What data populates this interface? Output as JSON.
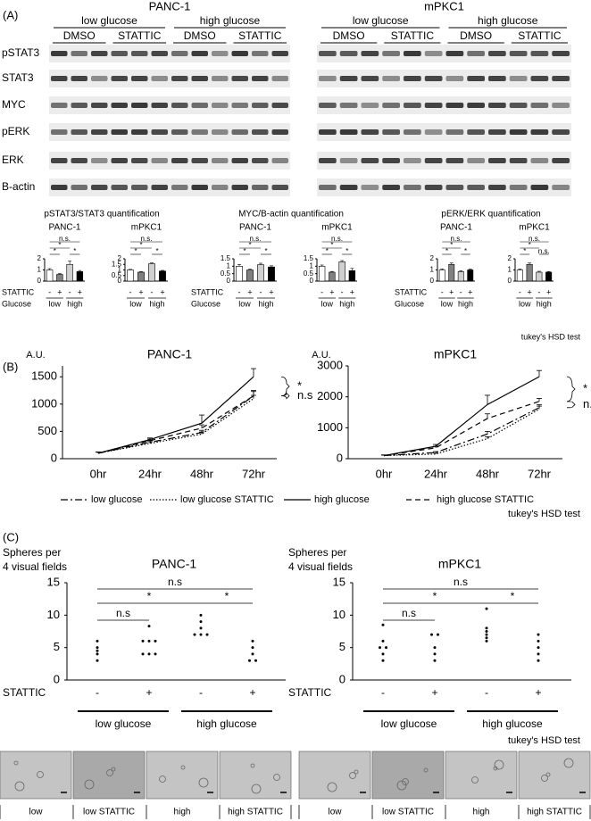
{
  "panel_a": {
    "label": "(A)",
    "blots": [
      {
        "title": "PANC-1",
        "conditions": [
          "low glucose",
          "high glucose"
        ],
        "treatments": [
          "DMSO",
          "STATTIC",
          "DMSO",
          "STATTIC"
        ]
      },
      {
        "title": "mPKC1",
        "conditions": [
          "low glucose",
          "high glucose"
        ],
        "treatments": [
          "DMSO",
          "STATTIC",
          "DMSO",
          "STATTIC"
        ]
      }
    ],
    "rows": [
      "pSTAT3",
      "STAT3",
      "MYC",
      "pERK",
      "ERK",
      "B-actin"
    ],
    "quantifications": [
      {
        "title": "pSTAT3/STAT3 quantification",
        "stattic_label": "STATTIC",
        "glucose_label": "Glucose"
      },
      {
        "title": "MYC/B-actin quantification",
        "stattic_label": "STATTIC",
        "glucose_label": "Glucose"
      },
      {
        "title": "pERK/ERK quantification",
        "stattic_label": "STATTIC",
        "glucose_label": "Glucose"
      }
    ],
    "test_note": "tukey's HSD test"
  },
  "panel_b": {
    "label": "(B)",
    "test_note": "tukey's HSD test"
  },
  "panel_c": {
    "label": "(C)",
    "test_note": "tukey's HSD test",
    "images": [
      "low",
      "low STATTIC",
      "high",
      "high STATTIC",
      "low",
      "low STATTIC",
      "high",
      "high STATTIC"
    ]
  },
  "chart_data": [
    {
      "type": "bar",
      "title": "PANC-1",
      "categories": [
        "-",
        "+",
        "-",
        "+"
      ],
      "groups": [
        "low",
        "high"
      ],
      "values": [
        1.0,
        0.6,
        1.5,
        0.85
      ],
      "errors": [
        0.12,
        0.08,
        0.3,
        0.1
      ],
      "colors": [
        "#ffffff",
        "#808080",
        "#d0d0d0",
        "#000000"
      ],
      "ylim": [
        0,
        2
      ],
      "yticks": [
        0,
        1,
        2
      ],
      "annotations": [
        "*",
        "*",
        "*",
        "n.s."
      ]
    },
    {
      "type": "bar",
      "title": "mPKC1",
      "categories": [
        "-",
        "+",
        "-",
        "+"
      ],
      "groups": [
        "low",
        "high"
      ],
      "values": [
        1.0,
        0.8,
        1.55,
        0.9
      ],
      "errors": [
        0.05,
        0.05,
        0.08,
        0.06
      ],
      "colors": [
        "#ffffff",
        "#808080",
        "#d0d0d0",
        "#000000"
      ],
      "ylim": [
        0,
        2
      ],
      "yticks": [
        0,
        0.5,
        1,
        1.5,
        2
      ],
      "annotations": [
        "*",
        "*",
        "*",
        "n.s."
      ]
    },
    {
      "type": "bar",
      "title": "PANC-1",
      "categories": [
        "-",
        "+",
        "-",
        "+"
      ],
      "groups": [
        "low",
        "high"
      ],
      "values": [
        1.0,
        0.75,
        1.1,
        0.95
      ],
      "errors": [
        0.12,
        0.05,
        0.1,
        0.08
      ],
      "colors": [
        "#ffffff",
        "#808080",
        "#d0d0d0",
        "#000000"
      ],
      "ylim": [
        0,
        1.5
      ],
      "yticks": [
        0,
        0.5,
        1,
        1.5
      ],
      "annotations": [
        "*",
        "*",
        "*",
        "n.s."
      ]
    },
    {
      "type": "bar",
      "title": "mPKC1",
      "categories": [
        "-",
        "+",
        "-",
        "+"
      ],
      "groups": [
        "low",
        "high"
      ],
      "values": [
        1.0,
        0.6,
        1.3,
        0.7
      ],
      "errors": [
        0.08,
        0.05,
        0.08,
        0.15
      ],
      "colors": [
        "#ffffff",
        "#808080",
        "#d0d0d0",
        "#000000"
      ],
      "ylim": [
        0,
        1.5
      ],
      "yticks": [
        0,
        0.5,
        1,
        1.5
      ],
      "annotations": [
        "*",
        "*",
        "*",
        "n.s."
      ]
    },
    {
      "type": "bar",
      "title": "PANC-1",
      "categories": [
        "-",
        "+",
        "-",
        "+"
      ],
      "groups": [
        "low",
        "high"
      ],
      "values": [
        1.0,
        1.5,
        0.85,
        1.0
      ],
      "errors": [
        0.1,
        0.12,
        0.08,
        0.08
      ],
      "colors": [
        "#ffffff",
        "#808080",
        "#d0d0d0",
        "#000000"
      ],
      "ylim": [
        0,
        2
      ],
      "yticks": [
        0,
        1,
        2
      ],
      "annotations": [
        "*",
        "*",
        "*",
        "n.s."
      ]
    },
    {
      "type": "bar",
      "title": "mPKC1",
      "categories": [
        "-",
        "+",
        "-",
        "+"
      ],
      "groups": [
        "low",
        "high"
      ],
      "values": [
        1.0,
        1.5,
        0.8,
        0.8
      ],
      "errors": [
        0.08,
        0.12,
        0.08,
        0.06
      ],
      "colors": [
        "#ffffff",
        "#808080",
        "#d0d0d0",
        "#000000"
      ],
      "ylim": [
        0,
        2
      ],
      "yticks": [
        0,
        1,
        2
      ],
      "annotations": [
        "*",
        "n.s.",
        "*",
        "n.s."
      ]
    },
    {
      "type": "line",
      "title": "PANC-1",
      "ylabel": "A.U.",
      "categories": [
        "0hr",
        "24hr",
        "48hr",
        "72hr"
      ],
      "ylim": [
        0,
        1700
      ],
      "yticks": [
        0,
        500,
        1000,
        1500
      ],
      "annotations": [
        "*",
        "n.s"
      ],
      "series": [
        {
          "name": "low glucose",
          "color": "#000000",
          "style": "dash-dot",
          "values": [
            100,
            300,
            480,
            1150
          ],
          "errors": [
            20,
            30,
            40,
            80
          ]
        },
        {
          "name": "low glucose STATTIC",
          "color": "#000000",
          "style": "dotted",
          "values": [
            100,
            280,
            450,
            1100
          ],
          "errors": [
            20,
            30,
            40,
            60
          ]
        },
        {
          "name": "high glucose",
          "color": "#000000",
          "style": "solid",
          "values": [
            100,
            350,
            650,
            1500
          ],
          "errors": [
            20,
            30,
            150,
            150
          ]
        },
        {
          "name": "high glucose STATTIC",
          "color": "#000000",
          "style": "dashed",
          "values": [
            100,
            330,
            560,
            1150
          ],
          "errors": [
            20,
            30,
            60,
            100
          ]
        }
      ]
    },
    {
      "type": "line",
      "title": "mPKC1",
      "ylabel": "A.U.",
      "categories": [
        "0hr",
        "24hr",
        "48hr",
        "72hr"
      ],
      "ylim": [
        0,
        3000
      ],
      "yticks": [
        0,
        1000,
        2000,
        3000
      ],
      "annotations": [
        "*",
        "n.s"
      ],
      "series": [
        {
          "color": "#000000",
          "style": "dash-dot",
          "values": [
            100,
            200,
            800,
            1650
          ],
          "errors": [
            20,
            30,
            80,
            100
          ]
        },
        {
          "color": "#000000",
          "style": "dotted",
          "values": [
            100,
            150,
            650,
            1600
          ],
          "errors": [
            20,
            30,
            60,
            100
          ]
        },
        {
          "color": "#000000",
          "style": "solid",
          "values": [
            100,
            400,
            1750,
            2650
          ],
          "errors": [
            20,
            60,
            300,
            200
          ]
        },
        {
          "color": "#000000",
          "style": "dashed",
          "values": [
            100,
            350,
            1300,
            1850
          ],
          "errors": [
            20,
            50,
            150,
            100
          ]
        }
      ]
    },
    {
      "type": "dot",
      "title": "PANC-1",
      "ylabel": [
        "Spheres per",
        "4 visual fields"
      ],
      "xlabel": "STATTIC",
      "categories": [
        "-",
        "+",
        "-",
        "+"
      ],
      "groups": [
        "low glucose",
        "high glucose"
      ],
      "ylim": [
        0,
        15
      ],
      "yticks": [
        0,
        5,
        10,
        15
      ],
      "annotations": [
        "n.s",
        "*",
        "*",
        "n.s"
      ],
      "points": [
        [
          6,
          5,
          4.5,
          4,
          3
        ],
        [
          8.3,
          6,
          6,
          6,
          4,
          4,
          4
        ],
        [
          10,
          9,
          8,
          7,
          7,
          7
        ],
        [
          6,
          5,
          4,
          3,
          3
        ]
      ]
    },
    {
      "type": "dot",
      "title": "mPKC1",
      "ylabel": [
        "Spheres per",
        "4 visual fields"
      ],
      "xlabel": "STATTIC",
      "categories": [
        "-",
        "+",
        "-",
        "+"
      ],
      "groups": [
        "low glucose",
        "high glucose"
      ],
      "ylim": [
        0,
        15
      ],
      "yticks": [
        0,
        5,
        10,
        15
      ],
      "annotations": [
        "n.s",
        "*",
        "*",
        "n.s"
      ],
      "points": [
        [
          8.5,
          6,
          5,
          5,
          4,
          3
        ],
        [
          7,
          7,
          5,
          4,
          3
        ],
        [
          11,
          8,
          7.5,
          7,
          6.5,
          6
        ],
        [
          7,
          6,
          5,
          4,
          3
        ]
      ]
    }
  ]
}
